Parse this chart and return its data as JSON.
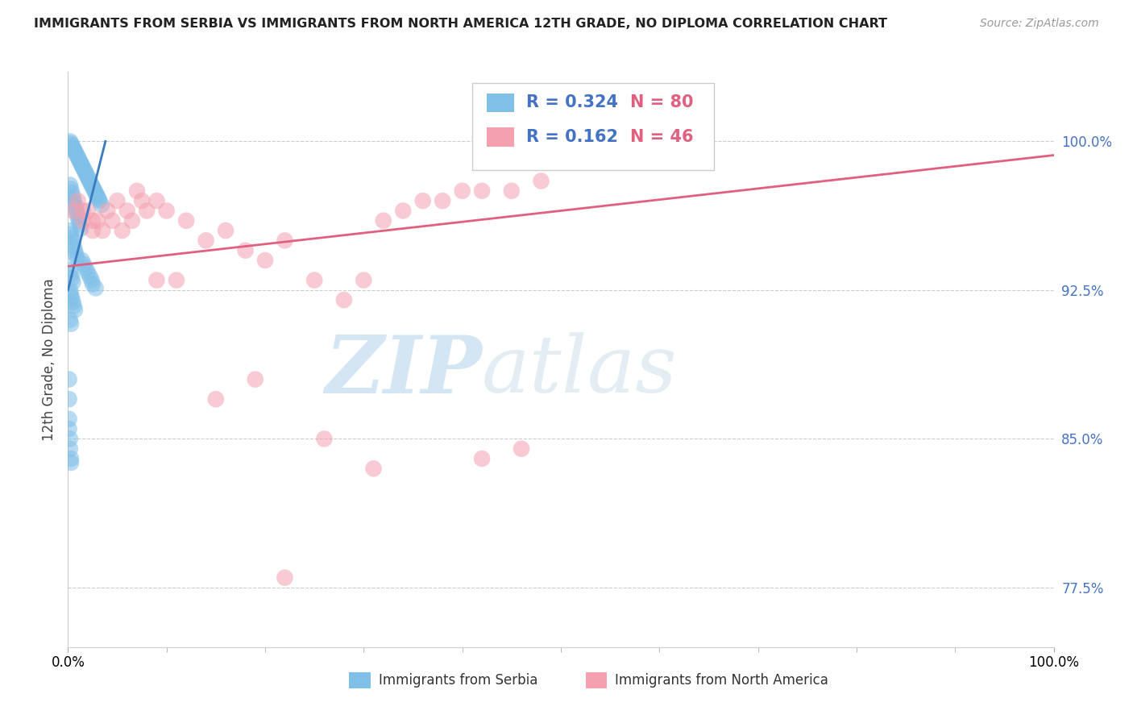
{
  "title": "IMMIGRANTS FROM SERBIA VS IMMIGRANTS FROM NORTH AMERICA 12TH GRADE, NO DIPLOMA CORRELATION CHART",
  "source": "Source: ZipAtlas.com",
  "ylabel": "12th Grade, No Diploma",
  "ylabel_ticks": [
    "77.5%",
    "85.0%",
    "92.5%",
    "100.0%"
  ],
  "ylabel_tick_vals": [
    0.775,
    0.85,
    0.925,
    1.0
  ],
  "xlim": [
    0.0,
    1.0
  ],
  "ylim": [
    0.745,
    1.035
  ],
  "legend_r1": "R = 0.324",
  "legend_n1": "N = 80",
  "legend_r2": "R = 0.162",
  "legend_n2": "N = 46",
  "color_blue": "#7fbfe8",
  "color_pink": "#f4a0b0",
  "color_blue_line": "#3a7abf",
  "color_pink_line": "#e06080",
  "color_blue_text": "#4472c4",
  "color_pink_text": "#e06080",
  "background_color": "#ffffff",
  "grid_color": "#cccccc",
  "serbia_x": [
    0.002,
    0.003,
    0.004,
    0.005,
    0.006,
    0.007,
    0.008,
    0.009,
    0.01,
    0.011,
    0.012,
    0.013,
    0.014,
    0.015,
    0.016,
    0.017,
    0.018,
    0.019,
    0.02,
    0.021,
    0.022,
    0.023,
    0.024,
    0.025,
    0.026,
    0.027,
    0.028,
    0.029,
    0.03,
    0.031,
    0.002,
    0.003,
    0.004,
    0.005,
    0.006,
    0.007,
    0.008,
    0.009,
    0.01,
    0.011,
    0.012,
    0.013,
    0.002,
    0.003,
    0.004,
    0.005,
    0.006,
    0.007,
    0.008,
    0.009,
    0.002,
    0.003,
    0.004,
    0.005,
    0.002,
    0.003,
    0.004,
    0.005,
    0.006,
    0.007,
    0.002,
    0.003,
    0.014,
    0.016,
    0.018,
    0.02,
    0.022,
    0.024,
    0.025,
    0.028,
    0.032,
    0.034,
    0.001,
    0.001,
    0.001,
    0.001,
    0.002,
    0.002,
    0.003,
    0.003
  ],
  "serbia_y": [
    1.0,
    0.999,
    0.998,
    0.997,
    0.996,
    0.995,
    0.994,
    0.993,
    0.992,
    0.991,
    0.99,
    0.989,
    0.988,
    0.987,
    0.986,
    0.985,
    0.984,
    0.983,
    0.982,
    0.981,
    0.98,
    0.979,
    0.978,
    0.977,
    0.976,
    0.975,
    0.974,
    0.973,
    0.972,
    0.971,
    0.978,
    0.976,
    0.974,
    0.972,
    0.97,
    0.968,
    0.966,
    0.964,
    0.962,
    0.96,
    0.958,
    0.956,
    0.955,
    0.953,
    0.951,
    0.949,
    0.947,
    0.945,
    0.943,
    0.941,
    0.935,
    0.933,
    0.931,
    0.929,
    0.925,
    0.923,
    0.921,
    0.919,
    0.917,
    0.915,
    0.91,
    0.908,
    0.94,
    0.938,
    0.936,
    0.934,
    0.932,
    0.93,
    0.928,
    0.926,
    0.97,
    0.968,
    0.88,
    0.87,
    0.86,
    0.855,
    0.85,
    0.845,
    0.84,
    0.838
  ],
  "na_x": [
    0.005,
    0.01,
    0.015,
    0.02,
    0.025,
    0.03,
    0.04,
    0.05,
    0.06,
    0.07,
    0.08,
    0.09,
    0.1,
    0.12,
    0.14,
    0.16,
    0.18,
    0.2,
    0.22,
    0.25,
    0.28,
    0.3,
    0.32,
    0.34,
    0.36,
    0.38,
    0.4,
    0.42,
    0.45,
    0.48,
    0.015,
    0.025,
    0.035,
    0.045,
    0.055,
    0.065,
    0.075,
    0.09,
    0.11,
    0.15,
    0.19,
    0.26,
    0.31,
    0.42,
    0.46,
    0.22
  ],
  "na_y": [
    0.965,
    0.97,
    0.96,
    0.965,
    0.955,
    0.96,
    0.965,
    0.97,
    0.965,
    0.975,
    0.965,
    0.97,
    0.965,
    0.96,
    0.95,
    0.955,
    0.945,
    0.94,
    0.95,
    0.93,
    0.92,
    0.93,
    0.96,
    0.965,
    0.97,
    0.97,
    0.975,
    0.975,
    0.975,
    0.98,
    0.965,
    0.96,
    0.955,
    0.96,
    0.955,
    0.96,
    0.97,
    0.93,
    0.93,
    0.87,
    0.88,
    0.85,
    0.835,
    0.84,
    0.845,
    0.78
  ],
  "serbia_trend_x": [
    0.0,
    0.038
  ],
  "serbia_trend_y": [
    0.925,
    1.0
  ],
  "na_trend_x": [
    0.0,
    1.0
  ],
  "na_trend_y": [
    0.937,
    0.993
  ]
}
